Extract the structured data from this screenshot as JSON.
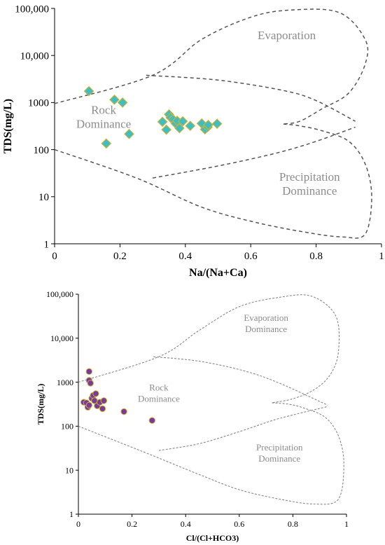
{
  "chart_data": [
    {
      "type": "scatter",
      "title": "",
      "xlabel": "Na/(Na+Ca)",
      "ylabel": "TDS(mg/L)",
      "xlim": [
        0,
        1
      ],
      "ylim": [
        1,
        100000
      ],
      "y_scale": "log",
      "grid": false,
      "x_ticks": [
        "0",
        "0.2",
        "0.4",
        "0.6",
        "0.8",
        "1"
      ],
      "y_ticks": [
        "1",
        "10",
        "100",
        "1000",
        "10,000",
        "100,000"
      ],
      "marker": {
        "shape": "diamond",
        "fill": "#3cbfc4",
        "stroke": "#c9b037"
      },
      "boundary_color": "#555555",
      "annotations": {
        "evaporation": [
          "Evaporation"
        ],
        "rock": [
          "Rock",
          "Dominance"
        ],
        "precipitation": [
          "Precipitation",
          "Dominance"
        ]
      },
      "points": [
        [
          0.105,
          1750
        ],
        [
          0.183,
          1150
        ],
        [
          0.208,
          1000
        ],
        [
          0.158,
          135
        ],
        [
          0.228,
          215
        ],
        [
          0.33,
          390
        ],
        [
          0.35,
          560
        ],
        [
          0.342,
          265
        ],
        [
          0.355,
          480
        ],
        [
          0.362,
          440
        ],
        [
          0.37,
          360
        ],
        [
          0.375,
          410
        ],
        [
          0.382,
          285
        ],
        [
          0.392,
          400
        ],
        [
          0.415,
          320
        ],
        [
          0.45,
          360
        ],
        [
          0.46,
          270
        ],
        [
          0.468,
          300
        ],
        [
          0.47,
          335
        ],
        [
          0.497,
          355
        ]
      ]
    },
    {
      "type": "scatter",
      "title": "",
      "xlabel": "Cl/(Cl+HCO3)",
      "ylabel": "TDS(mg/L)",
      "xlim": [
        0,
        1
      ],
      "ylim": [
        1,
        100000
      ],
      "y_scale": "log",
      "grid": false,
      "x_ticks": [
        "0",
        "0.2",
        "0.4",
        "0.6",
        "0.8",
        "1"
      ],
      "y_ticks": [
        "1",
        "10",
        "100",
        "1000",
        "10,000",
        "100,000"
      ],
      "marker": {
        "shape": "circle",
        "fill": "#7a3b96",
        "stroke": "#c9b037"
      },
      "boundary_color": "#888888",
      "annotations": {
        "evaporation": [
          "Evaporation",
          "Dominance"
        ],
        "rock": [
          "Rock",
          "Dominance"
        ],
        "precipitation": [
          "Precipitation",
          "Dominance"
        ]
      },
      "points": [
        [
          0.04,
          1750
        ],
        [
          0.04,
          1100
        ],
        [
          0.045,
          950
        ],
        [
          0.02,
          350
        ],
        [
          0.03,
          340
        ],
        [
          0.035,
          270
        ],
        [
          0.04,
          300
        ],
        [
          0.05,
          430
        ],
        [
          0.055,
          500
        ],
        [
          0.06,
          380
        ],
        [
          0.065,
          550
        ],
        [
          0.07,
          290
        ],
        [
          0.08,
          350
        ],
        [
          0.09,
          250
        ],
        [
          0.095,
          380
        ],
        [
          0.17,
          215
        ],
        [
          0.275,
          135
        ]
      ]
    }
  ]
}
